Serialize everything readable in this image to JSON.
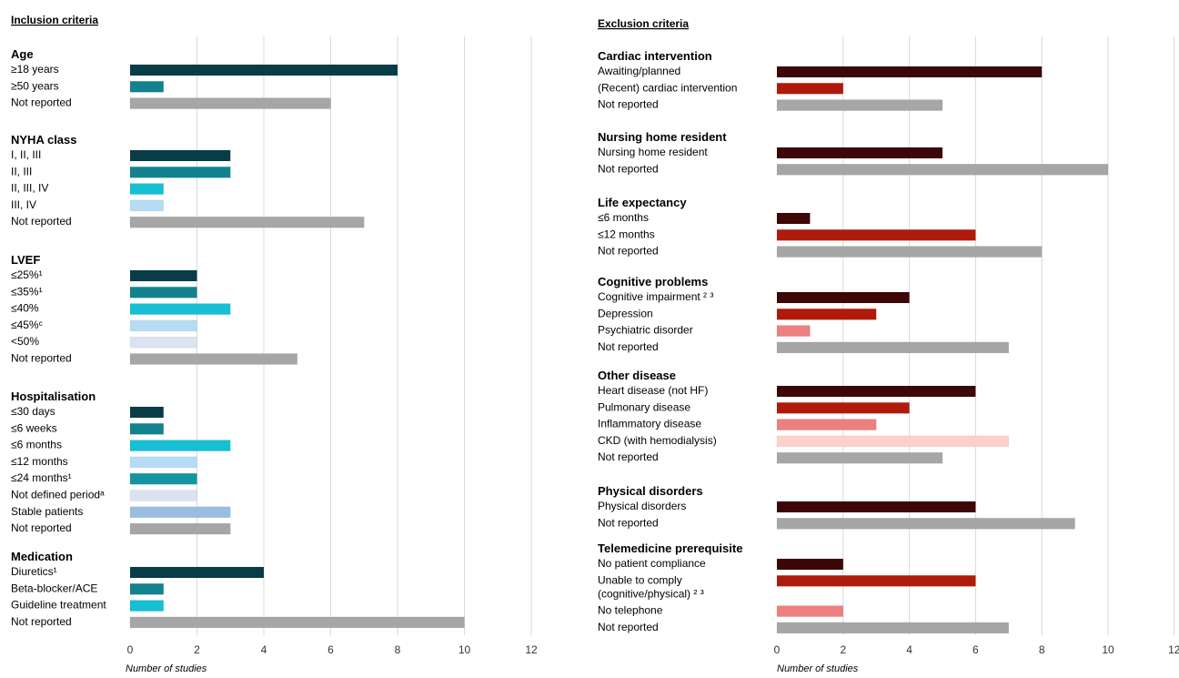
{
  "chart_data": [
    {
      "type": "bar",
      "orientation": "horizontal",
      "title": "Inclusion criteria",
      "xlabel": "Number of studies",
      "xlim": [
        0,
        12
      ],
      "xticks": [
        "0",
        "2",
        "4",
        "6",
        "8",
        "10",
        "12"
      ],
      "grid": true,
      "groups": [
        {
          "name": "Age",
          "items": [
            {
              "label": "≥18 years",
              "value": 8,
              "color": "#083d47"
            },
            {
              "label": "≥50 years",
              "value": 1,
              "color": "#12828e"
            },
            {
              "label": "Not reported",
              "value": 6,
              "color": "#a6a6a6"
            }
          ]
        },
        {
          "name": "NYHA class",
          "items": [
            {
              "label": "I, II, III",
              "value": 3,
              "color": "#083d47"
            },
            {
              "label": "II, III",
              "value": 3,
              "color": "#12828e"
            },
            {
              "label": "II, III, IV",
              "value": 1,
              "color": "#17bfd4"
            },
            {
              "label": "III, IV",
              "value": 1,
              "color": "#b5dcf4"
            },
            {
              "label": "Not reported",
              "value": 7,
              "color": "#a6a6a6"
            }
          ]
        },
        {
          "name": "LVEF",
          "items": [
            {
              "label": "≤25%¹",
              "value": 2,
              "color": "#083d47"
            },
            {
              "label": "≤35%¹",
              "value": 2,
              "color": "#12828e"
            },
            {
              "label": "≤40%",
              "value": 3,
              "color": "#17bfd4"
            },
            {
              "label": "≤45%ᶜ",
              "value": 2,
              "color": "#b5dcf4"
            },
            {
              "label": "<50%",
              "value": 2,
              "color": "#dbe3f1"
            },
            {
              "label": "Not reported",
              "value": 5,
              "color": "#a6a6a6"
            }
          ]
        },
        {
          "name": "Hospitalisation",
          "items": [
            {
              "label": "≤30 days",
              "value": 1,
              "color": "#083d47"
            },
            {
              "label": "≤6 weeks",
              "value": 1,
              "color": "#12828e"
            },
            {
              "label": "≤6 months",
              "value": 3,
              "color": "#17bfd4"
            },
            {
              "label": "≤12 months",
              "value": 2,
              "color": "#b5dcf4"
            },
            {
              "label": "≤24 months¹",
              "value": 2,
              "color": "#12959f"
            },
            {
              "label": "Not defined periodᵃ",
              "value": 2,
              "color": "#dbe3f1"
            },
            {
              "label": "Stable patients",
              "value": 3,
              "color": "#9bbde0"
            },
            {
              "label": "Not reported",
              "value": 3,
              "color": "#a6a6a6"
            }
          ]
        },
        {
          "name": "Medication",
          "items": [
            {
              "label": "Diuretics¹",
              "value": 4,
              "color": "#083d47"
            },
            {
              "label": "Beta-blocker/ACE",
              "value": 1,
              "color": "#12828e"
            },
            {
              "label": "Guideline treatment",
              "value": 1,
              "color": "#17bfd4"
            },
            {
              "label": "Not reported",
              "value": 10,
              "color": "#a6a6a6"
            }
          ]
        }
      ]
    },
    {
      "type": "bar",
      "orientation": "horizontal",
      "title": "Exclusion criteria",
      "xlabel": "Number of studies",
      "xlim": [
        0,
        12
      ],
      "xticks": [
        "0",
        "2",
        "4",
        "6",
        "8",
        "10",
        "12"
      ],
      "grid": true,
      "groups": [
        {
          "name": "Cardiac intervention",
          "items": [
            {
              "label": "Awaiting/planned",
              "value": 8,
              "color": "#3d0707"
            },
            {
              "label": "(Recent) cardiac intervention",
              "value": 2,
              "color": "#b01a0c"
            },
            {
              "label": "Not reported",
              "value": 5,
              "color": "#a6a6a6"
            }
          ]
        },
        {
          "name": "Nursing home resident",
          "items": [
            {
              "label": "Nursing home resident",
              "value": 5,
              "color": "#3d0707"
            },
            {
              "label": "Not reported",
              "value": 10,
              "color": "#a6a6a6"
            }
          ]
        },
        {
          "name": "Life expectancy",
          "items": [
            {
              "label": "≤6 months",
              "value": 1,
              "color": "#3d0707"
            },
            {
              "label": "≤12 months",
              "value": 6,
              "color": "#b01a0c"
            },
            {
              "label": "Not reported",
              "value": 8,
              "color": "#a6a6a6"
            }
          ]
        },
        {
          "name": "Cognitive problems",
          "items": [
            {
              "label": "Cognitive impairment ² ³",
              "value": 4,
              "color": "#3d0707"
            },
            {
              "label": "Depression",
              "value": 3,
              "color": "#b01a0c"
            },
            {
              "label": "Psychiatric disorder",
              "value": 1,
              "color": "#ed7f7f"
            },
            {
              "label": "Not reported",
              "value": 7,
              "color": "#a6a6a6"
            }
          ]
        },
        {
          "name": "Other disease",
          "items": [
            {
              "label": "Heart disease (not HF)",
              "value": 6,
              "color": "#3d0707"
            },
            {
              "label": "Pulmonary disease",
              "value": 4,
              "color": "#b01a0c"
            },
            {
              "label": "Inflammatory disease",
              "value": 3,
              "color": "#ed7f7f"
            },
            {
              "label": "CKD (with hemodialysis)",
              "value": 7,
              "color": "#fcd1cc"
            },
            {
              "label": "Not reported",
              "value": 5,
              "color": "#a6a6a6"
            }
          ]
        },
        {
          "name": "Physical disorders",
          "items": [
            {
              "label": "Physical disorders",
              "value": 6,
              "color": "#3d0707"
            },
            {
              "label": "Not reported",
              "value": 9,
              "color": "#a6a6a6"
            }
          ]
        },
        {
          "name": "Telemedicine prerequisite",
          "items": [
            {
              "label": "No patient compliance",
              "value": 2,
              "color": "#3d0707"
            },
            {
              "label": "Unable to comply (cognitive/physical) ² ³",
              "value": 6,
              "color": "#b01a0c"
            },
            {
              "label": "No telephone",
              "value": 2,
              "color": "#ed7f7f"
            },
            {
              "label": "Not reported",
              "value": 7,
              "color": "#a6a6a6"
            }
          ]
        }
      ]
    }
  ]
}
